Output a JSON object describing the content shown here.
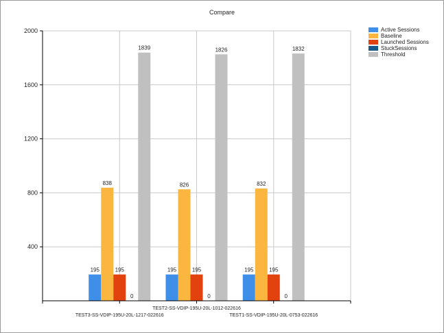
{
  "chart_data": {
    "type": "bar",
    "title": "Compare",
    "xlabel": "",
    "ylabel": "",
    "ylim": [
      0,
      2000
    ],
    "yticks": [
      400,
      800,
      1200,
      1600,
      2000
    ],
    "grid": true,
    "legend_position": "top-right",
    "categories": [
      "TEST3-SS-VDIP-195U-20L-1217-022616",
      "TEST2-SS-VDIP-195U-20L-1012-022616",
      "TEST1-SS-VDIP-195U-20L-0753-022616"
    ],
    "series": [
      {
        "name": "Active Sessions",
        "color": "#3f8ee8",
        "values": [
          195,
          195,
          195
        ]
      },
      {
        "name": "Baseline",
        "color": "#fbb640",
        "values": [
          838,
          826,
          832
        ]
      },
      {
        "name": "Launched Sessions",
        "color": "#e2430e",
        "values": [
          195,
          195,
          195
        ]
      },
      {
        "name": "StuckSessions",
        "color": "#1a5a8a",
        "values": [
          0,
          0,
          0
        ]
      },
      {
        "name": "Threshold",
        "color": "#c0c0c0",
        "values": [
          1839,
          1826,
          1832
        ]
      }
    ]
  }
}
